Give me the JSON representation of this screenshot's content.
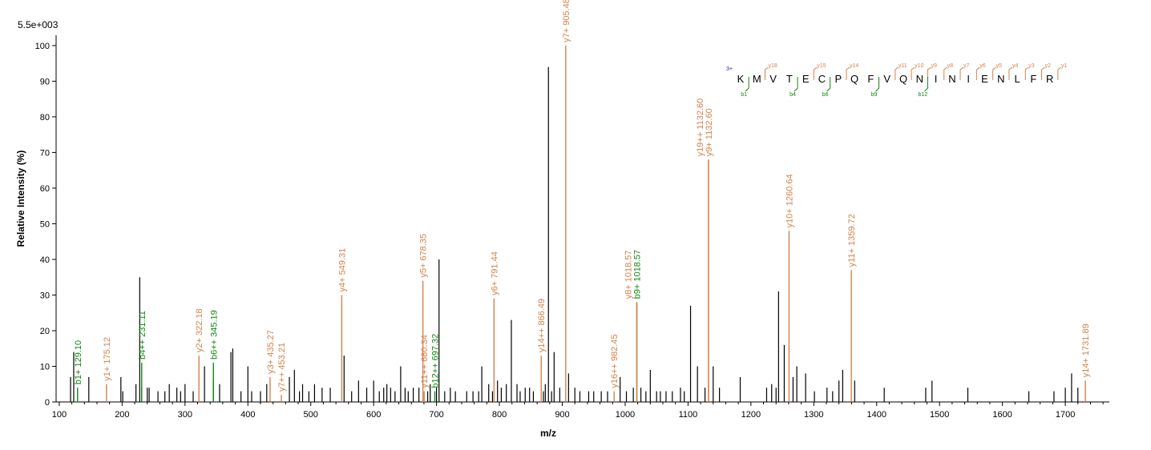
{
  "chart_data": {
    "type": "bar",
    "scale_label": "5.5e+003",
    "xlabel": "m/z",
    "ylabel": "Relative   Intensity (%)",
    "xlim": [
      95,
      1770
    ],
    "ylim": [
      0,
      102
    ],
    "x_ticks": [
      100,
      200,
      300,
      400,
      500,
      600,
      700,
      800,
      900,
      1000,
      1100,
      1200,
      1300,
      1400,
      1500,
      1600,
      1700
    ],
    "y_ticks": [
      0,
      10,
      20,
      30,
      40,
      50,
      60,
      70,
      80,
      90,
      100
    ],
    "colors": {
      "y_ion": "#d2834b",
      "b_ion": "#128712",
      "unmatched": "#000000",
      "charge": "#1a1aa8"
    },
    "labeled_peaks": [
      {
        "mz": 129.1,
        "intensity": 4,
        "label": "b1+ 129.10",
        "ion": "b"
      },
      {
        "mz": 175.12,
        "intensity": 5,
        "label": "y1+ 175.12",
        "ion": "y"
      },
      {
        "mz": 231.11,
        "intensity": 11,
        "label": "b4++ 231.11",
        "ion": "b"
      },
      {
        "mz": 322.18,
        "intensity": 13,
        "label": "y2+ 322.18",
        "ion": "y"
      },
      {
        "mz": 345.19,
        "intensity": 11,
        "label": "b6++ 345.19",
        "ion": "b"
      },
      {
        "mz": 435.27,
        "intensity": 7,
        "label": "y3+ 435.27",
        "ion": "y"
      },
      {
        "mz": 453.21,
        "intensity": 2,
        "label": "y7++ 453.21",
        "ion": "y"
      },
      {
        "mz": 549.31,
        "intensity": 30,
        "label": "y4+ 549.31",
        "ion": "y"
      },
      {
        "mz": 678.35,
        "intensity": 34,
        "label": "y5+ 678.35",
        "ion": "y"
      },
      {
        "mz": 680.34,
        "intensity": 3,
        "label": "y11++ 680.34",
        "ion": "y"
      },
      {
        "mz": 697.32,
        "intensity": 3,
        "label": "b12++ 697.32",
        "ion": "b"
      },
      {
        "mz": 791.44,
        "intensity": 29,
        "label": "y6+ 791.44",
        "ion": "y"
      },
      {
        "mz": 866.49,
        "intensity": 13,
        "label": "y14++ 866.49",
        "ion": "y"
      },
      {
        "mz": 905.48,
        "intensity": 100,
        "label": "y7+ 905.48",
        "ion": "y"
      },
      {
        "mz": 982.45,
        "intensity": 3,
        "label": "y16++ 982.45",
        "ion": "y"
      },
      {
        "mz": 1018.57,
        "intensity": 28,
        "label": "b9+ 1018.57",
        "ion": "b"
      },
      {
        "mz": 1018.57,
        "intensity": 28,
        "label": "y8+ 1018.57",
        "ion": "y"
      },
      {
        "mz": 1132.6,
        "intensity": 68,
        "label": "y9+ 1132.60",
        "ion": "y"
      },
      {
        "mz": 1132.6,
        "intensity": 68,
        "label": "y19++ 1132.60",
        "ion": "y"
      },
      {
        "mz": 1260.64,
        "intensity": 48,
        "label": "y10+ 1260.64",
        "ion": "y"
      },
      {
        "mz": 1359.72,
        "intensity": 37,
        "label": "y11+ 1359.72",
        "ion": "y"
      },
      {
        "mz": 1731.89,
        "intensity": 6,
        "label": "y14+ 1731.89",
        "ion": "y"
      }
    ],
    "unlabeled_peaks": [
      [
        118,
        7
      ],
      [
        123,
        14
      ],
      [
        147,
        7
      ],
      [
        198,
        7
      ],
      [
        201,
        3
      ],
      [
        222,
        5
      ],
      [
        228,
        35
      ],
      [
        231,
        4
      ],
      [
        240,
        4
      ],
      [
        243,
        4
      ],
      [
        257,
        3
      ],
      [
        268,
        3
      ],
      [
        275,
        5
      ],
      [
        287,
        4
      ],
      [
        293,
        3
      ],
      [
        300,
        5
      ],
      [
        313,
        3
      ],
      [
        331,
        10
      ],
      [
        345,
        6
      ],
      [
        355,
        5
      ],
      [
        373,
        14
      ],
      [
        376,
        15
      ],
      [
        389,
        3
      ],
      [
        400,
        10
      ],
      [
        406,
        3
      ],
      [
        420,
        3
      ],
      [
        430,
        5
      ],
      [
        466,
        7
      ],
      [
        474,
        9
      ],
      [
        482,
        3
      ],
      [
        487,
        5
      ],
      [
        497,
        3
      ],
      [
        506,
        5
      ],
      [
        518,
        4
      ],
      [
        531,
        4
      ],
      [
        553,
        13
      ],
      [
        565,
        3
      ],
      [
        576,
        6
      ],
      [
        589,
        4
      ],
      [
        600,
        6
      ],
      [
        609,
        3
      ],
      [
        616,
        4
      ],
      [
        621,
        5
      ],
      [
        627,
        4
      ],
      [
        634,
        3
      ],
      [
        643,
        10
      ],
      [
        650,
        4
      ],
      [
        655,
        3
      ],
      [
        663,
        4
      ],
      [
        672,
        4
      ],
      [
        686,
        3
      ],
      [
        690,
        5
      ],
      [
        700,
        4
      ],
      [
        704,
        40
      ],
      [
        713,
        3
      ],
      [
        722,
        4
      ],
      [
        730,
        3
      ],
      [
        748,
        3
      ],
      [
        758,
        3
      ],
      [
        767,
        3
      ],
      [
        772,
        10
      ],
      [
        783,
        5
      ],
      [
        789,
        3
      ],
      [
        797,
        6
      ],
      [
        803,
        4
      ],
      [
        811,
        5
      ],
      [
        819,
        23
      ],
      [
        828,
        5
      ],
      [
        833,
        3
      ],
      [
        841,
        4
      ],
      [
        848,
        4
      ],
      [
        854,
        3
      ],
      [
        870,
        3
      ],
      [
        873,
        5
      ],
      [
        878,
        94
      ],
      [
        883,
        3
      ],
      [
        887,
        14
      ],
      [
        896,
        4
      ],
      [
        910,
        8
      ],
      [
        920,
        4
      ],
      [
        928,
        3
      ],
      [
        942,
        3
      ],
      [
        950,
        3
      ],
      [
        962,
        3
      ],
      [
        972,
        3
      ],
      [
        992,
        7
      ],
      [
        1002,
        3
      ],
      [
        1013,
        4
      ],
      [
        1025,
        4
      ],
      [
        1033,
        3
      ],
      [
        1040,
        9
      ],
      [
        1050,
        3
      ],
      [
        1056,
        3
      ],
      [
        1065,
        3
      ],
      [
        1075,
        3
      ],
      [
        1088,
        4
      ],
      [
        1094,
        3
      ],
      [
        1104,
        27
      ],
      [
        1115,
        10
      ],
      [
        1127,
        4
      ],
      [
        1140,
        10
      ],
      [
        1150,
        4
      ],
      [
        1183,
        7
      ],
      [
        1225,
        4
      ],
      [
        1233,
        5
      ],
      [
        1240,
        4
      ],
      [
        1244,
        31
      ],
      [
        1253,
        16
      ],
      [
        1267,
        7
      ],
      [
        1273,
        10
      ],
      [
        1287,
        8
      ],
      [
        1301,
        3
      ],
      [
        1321,
        4
      ],
      [
        1330,
        3
      ],
      [
        1340,
        6
      ],
      [
        1346,
        9
      ],
      [
        1365,
        6
      ],
      [
        1412,
        4
      ],
      [
        1478,
        4
      ],
      [
        1488,
        6
      ],
      [
        1545,
        4
      ],
      [
        1642,
        3
      ],
      [
        1682,
        3
      ],
      [
        1700,
        4
      ],
      [
        1710,
        8
      ],
      [
        1720,
        4
      ]
    ]
  },
  "sequence": {
    "charge": "3+",
    "residues": [
      "K",
      "M",
      "V",
      "T",
      "E",
      "C",
      "P",
      "Q",
      "F",
      "V",
      "Q",
      "N",
      "I",
      "N",
      "I",
      "E",
      "N",
      "L",
      "F",
      "R"
    ],
    "y_ions": [
      {
        "after": 2,
        "label": "y18"
      },
      {
        "after": 5,
        "label": "y15"
      },
      {
        "after": 7,
        "label": "y14"
      },
      {
        "after": 10,
        "label": "y11"
      },
      {
        "after": 11,
        "label": "y10"
      },
      {
        "after": 12,
        "label": "y9"
      },
      {
        "after": 13,
        "label": "y8"
      },
      {
        "after": 14,
        "label": "y7"
      },
      {
        "after": 15,
        "label": "y6"
      },
      {
        "after": 16,
        "label": "y5"
      },
      {
        "after": 17,
        "label": "y4"
      },
      {
        "after": 18,
        "label": "y3"
      },
      {
        "after": 19,
        "label": "y2"
      },
      {
        "after": 20,
        "label": "y1"
      }
    ],
    "b_ions": [
      {
        "after": 1,
        "label": "b1"
      },
      {
        "after": 4,
        "label": "b4"
      },
      {
        "after": 6,
        "label": "b6"
      },
      {
        "after": 9,
        "label": "b9"
      },
      {
        "after": 12,
        "label": "b12"
      }
    ]
  }
}
